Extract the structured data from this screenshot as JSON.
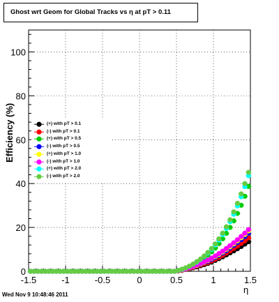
{
  "header": {
    "title": "Ghost wrt Geom for Global Tracks vs   η at pT > 0.11",
    "timestamp": "Wed Nov  9 10:48:46 2011"
  },
  "chart_data": {
    "type": "scatter",
    "title": "Ghost wrt Geom for Global Tracks vs   η at pT > 0.11",
    "xlabel": "η",
    "ylabel": "Efficiency (%)",
    "xlim": [
      -1.5,
      1.5
    ],
    "ylim": [
      0,
      110
    ],
    "xticks": [
      -1.5,
      -1,
      -0.5,
      0,
      0.5,
      1,
      1.5
    ],
    "xtick_labels": [
      "-1.5",
      "-1",
      "-0.5",
      "0",
      "0.5",
      "1",
      "1.5"
    ],
    "yticks": [
      0,
      20,
      40,
      60,
      80,
      100
    ],
    "ytick_labels": [
      "0",
      "20",
      "40",
      "60",
      "80",
      "100"
    ],
    "grid": true,
    "legend_position": "left-middle",
    "x": [
      -1.475,
      -1.425,
      -1.375,
      -1.325,
      -1.275,
      -1.225,
      -1.175,
      -1.125,
      -1.075,
      -1.025,
      -0.975,
      -0.925,
      -0.875,
      -0.825,
      -0.775,
      -0.725,
      -0.675,
      -0.625,
      -0.575,
      -0.525,
      -0.475,
      -0.425,
      -0.375,
      -0.325,
      -0.275,
      -0.225,
      -0.175,
      -0.125,
      -0.075,
      -0.025,
      0.025,
      0.075,
      0.125,
      0.175,
      0.225,
      0.275,
      0.325,
      0.375,
      0.425,
      0.475,
      0.525,
      0.575,
      0.625,
      0.675,
      0.725,
      0.775,
      0.825,
      0.875,
      0.925,
      0.975,
      1.025,
      1.075,
      1.125,
      1.175,
      1.225,
      1.275,
      1.325,
      1.375,
      1.425,
      1.475
    ],
    "series": [
      {
        "name": "(+) with pT > 0.1",
        "color": "#000000",
        "values": [
          0,
          0,
          0,
          0,
          0,
          0,
          0,
          0,
          0,
          0,
          0,
          0,
          0,
          0,
          0,
          0,
          0,
          0,
          0,
          0,
          0,
          0,
          0,
          0,
          0,
          0,
          0,
          0,
          0,
          0,
          0,
          0,
          0,
          0,
          0,
          0,
          0,
          0,
          0,
          0,
          0.2,
          0.4,
          0.8,
          1.2,
          1.6,
          2.0,
          2.5,
          3.0,
          3.6,
          4.2,
          5.0,
          5.8,
          6.6,
          7.5,
          8.4,
          9.3,
          10.3,
          11.3,
          12.4,
          13.5
        ]
      },
      {
        "name": "(-) with pT > 0.1",
        "color": "#ff0000",
        "values": [
          0,
          0,
          0,
          0,
          0,
          0,
          0,
          0,
          0,
          0,
          0,
          0,
          0,
          0,
          0,
          0,
          0,
          0,
          0,
          0,
          0,
          0,
          0,
          0,
          0,
          0,
          0,
          0,
          0,
          0,
          0,
          0,
          0,
          0,
          0,
          0,
          0,
          0,
          0,
          0,
          0.2,
          0.5,
          0.9,
          1.3,
          1.8,
          2.3,
          2.8,
          3.4,
          4.0,
          4.7,
          5.5,
          6.4,
          7.3,
          8.3,
          9.3,
          10.4,
          11.5,
          12.7,
          13.9,
          15.2
        ]
      },
      {
        "name": "(+) with pT > 0.5",
        "color": "#00cc00",
        "values": [
          0,
          0,
          0,
          0,
          0,
          0,
          0,
          0,
          0,
          0,
          0,
          0,
          0,
          0,
          0,
          0,
          0,
          0,
          0,
          0,
          0,
          0,
          0,
          0,
          0,
          0,
          0,
          0,
          0,
          0,
          0,
          0,
          0,
          0,
          0,
          0,
          0,
          0,
          0,
          0,
          0.4,
          0.9,
          1.5,
          2.2,
          3.0,
          3.9,
          4.9,
          6.0,
          7.4,
          8.9,
          10.6,
          12.6,
          14.8,
          17.3,
          20.0,
          23.0,
          26.4,
          30.1,
          34.2,
          38.7
        ]
      },
      {
        "name": "(-) with pT > 0.5",
        "color": "#0000ff",
        "values": [
          0,
          0,
          0,
          0,
          0,
          0,
          0,
          0,
          0,
          0,
          0,
          0,
          0,
          0,
          0,
          0,
          0,
          0,
          0,
          0,
          0,
          0,
          0,
          0,
          0,
          0,
          0,
          0,
          0,
          0,
          0,
          0,
          0,
          0,
          0,
          0,
          0,
          0,
          0,
          0,
          0.3,
          0.6,
          1.0,
          1.5,
          2.0,
          2.6,
          3.2,
          3.9,
          4.6,
          5.4,
          6.3,
          7.3,
          8.3,
          9.4,
          10.6,
          11.8,
          13.1,
          14.4,
          15.8,
          17.3
        ]
      },
      {
        "name": "(+) with pT > 1.0",
        "color": "#ffff00",
        "values": [
          0,
          0,
          0,
          0,
          0,
          0,
          0,
          0,
          0,
          0,
          0,
          0,
          0,
          0,
          0,
          0,
          0,
          0,
          0,
          0,
          0,
          0,
          0,
          0,
          0,
          0,
          0,
          0,
          0,
          0,
          0,
          0,
          0,
          0,
          0,
          0,
          0,
          0,
          0,
          0,
          0.3,
          0.6,
          1.0,
          1.5,
          2.1,
          2.7,
          3.4,
          4.1,
          4.9,
          5.8,
          6.7,
          7.7,
          8.8,
          10.0,
          11.2,
          12.5,
          13.9,
          15.3,
          16.8,
          18.4
        ]
      },
      {
        "name": "(-) with pT > 1.0",
        "color": "#ff00ff",
        "values": [
          0,
          0,
          0,
          0,
          0,
          0,
          0,
          0,
          0,
          0,
          0,
          0,
          0,
          0,
          0,
          0,
          0,
          0,
          0,
          0,
          0,
          0,
          0,
          0,
          0,
          0,
          0,
          0,
          0,
          0,
          0,
          0,
          0,
          0,
          0,
          0,
          0,
          0,
          0,
          0,
          0.3,
          0.7,
          1.1,
          1.6,
          2.2,
          2.9,
          3.6,
          4.3,
          5.1,
          6.0,
          7.0,
          8.1,
          9.2,
          10.4,
          11.7,
          13.0,
          14.4,
          15.9,
          17.4,
          19.0
        ]
      },
      {
        "name": "(+) with pT > 2.0",
        "color": "#00ffff",
        "values": [
          0,
          0,
          0,
          0,
          0,
          0,
          0,
          0,
          0,
          0,
          0,
          0,
          0,
          0,
          0,
          0,
          0,
          0,
          0,
          0,
          0,
          0,
          0,
          0,
          0,
          0,
          0,
          0,
          0,
          0,
          0,
          0,
          0,
          0,
          0,
          0,
          0,
          0,
          0,
          0,
          0.4,
          0.9,
          1.5,
          2.3,
          3.2,
          4.2,
          5.4,
          6.8,
          8.3,
          10.0,
          12.0,
          14.2,
          16.7,
          19.5,
          22.6,
          26.0,
          29.8,
          34.0,
          38.6,
          43.6
        ]
      },
      {
        "name": "(-) with pT > 2.0",
        "color": "#66cc44",
        "values": [
          0,
          0,
          0,
          0,
          0,
          0,
          0,
          0,
          0,
          0,
          0,
          0,
          0,
          0,
          0,
          0,
          0,
          0,
          0,
          0,
          0,
          0,
          0,
          0,
          0,
          0,
          0,
          0,
          0,
          0,
          0,
          0,
          0,
          0,
          0,
          0,
          0,
          0,
          0,
          0,
          0.4,
          1.0,
          1.6,
          2.4,
          3.3,
          4.4,
          5.6,
          7.0,
          8.6,
          10.4,
          12.5,
          14.8,
          17.4,
          20.3,
          23.5,
          27.1,
          31.0,
          35.3,
          40.0,
          45.1
        ]
      }
    ]
  }
}
